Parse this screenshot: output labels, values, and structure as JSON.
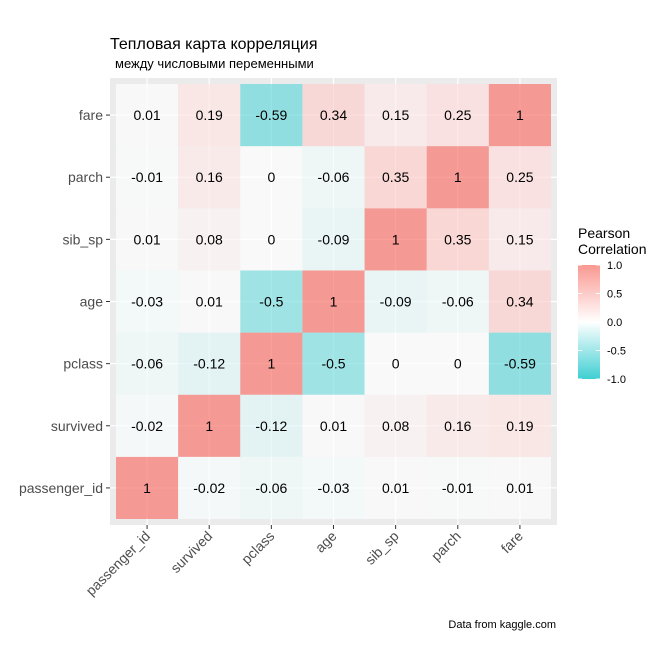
{
  "chart_data": {
    "type": "heatmap",
    "title": "Тепловая карта корреляция",
    "subtitle": "между числовыми переменными",
    "caption": "Data from kaggle.com",
    "variables": [
      "passenger_id",
      "survived",
      "pclass",
      "age",
      "sib_sp",
      "parch",
      "fare"
    ],
    "matrix": [
      [
        1,
        -0.02,
        -0.06,
        -0.03,
        0.01,
        -0.01,
        0.01
      ],
      [
        -0.02,
        1,
        -0.12,
        0.01,
        0.08,
        0.16,
        0.19
      ],
      [
        -0.06,
        -0.12,
        1,
        -0.5,
        0,
        0,
        -0.59
      ],
      [
        -0.03,
        0.01,
        -0.5,
        1,
        -0.09,
        -0.06,
        0.34
      ],
      [
        0.01,
        0.08,
        0,
        -0.09,
        1,
        0.35,
        0.15
      ],
      [
        -0.01,
        0.16,
        0,
        -0.06,
        0.35,
        1,
        0.25
      ],
      [
        0.01,
        0.19,
        -0.59,
        0.34,
        0.15,
        0.25,
        1
      ]
    ],
    "legend": {
      "title_line1": "Pearson",
      "title_line2": "Correlation",
      "ticks": [
        1.0,
        0.5,
        0.0,
        -0.5,
        -1.0
      ],
      "tick_labels": [
        "1.0",
        "0.5",
        "0.0",
        "-0.5",
        "-1.0"
      ],
      "range": [
        -1,
        1
      ],
      "placement": "right"
    },
    "colors": {
      "high": "#F8766D",
      "mid": "#FFFFFF",
      "low": "#00BFC4",
      "panel": "#EBEBEB",
      "grid": "#FFFFFF"
    }
  }
}
